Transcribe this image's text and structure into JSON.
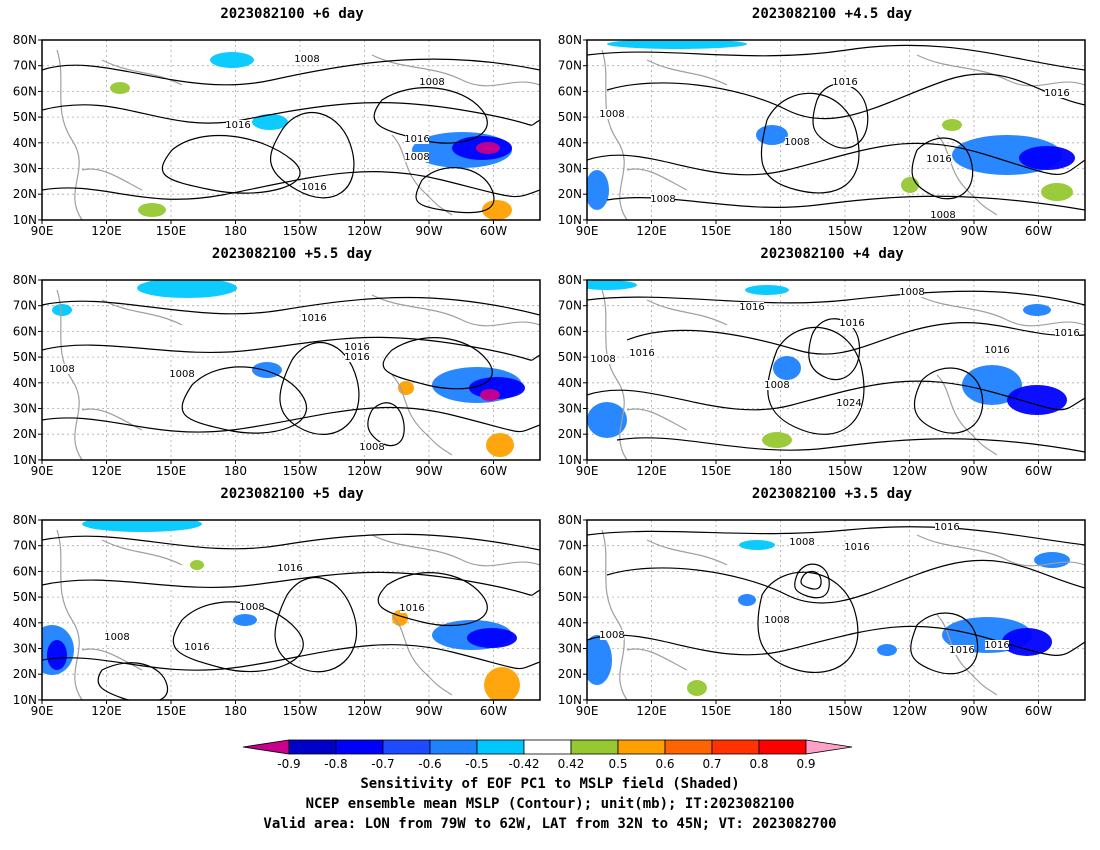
{
  "panels": [
    {
      "title": "2023082100 +6 day"
    },
    {
      "title": "2023082100 +4.5 day"
    },
    {
      "title": "2023082100 +5.5 day"
    },
    {
      "title": "2023082100 +4 day"
    },
    {
      "title": "2023082100 +5 day"
    },
    {
      "title": "2023082100 +3.5 day"
    }
  ],
  "axes": {
    "lat_ticks": [
      "80N",
      "70N",
      "60N",
      "50N",
      "40N",
      "30N",
      "20N",
      "10N"
    ],
    "lon_ticks": [
      "90E",
      "120E",
      "150E",
      "180",
      "150W",
      "120W",
      "90W",
      "60W"
    ]
  },
  "contour_labels": [
    [
      "1008",
      "1008",
      "1016",
      "1016",
      "1008",
      "1016"
    ],
    [
      "1016",
      "1016",
      "1008",
      "1008",
      "1016",
      "1008",
      "1008"
    ],
    [
      "1008",
      "1016",
      "1016",
      "1016",
      "1008",
      "1008"
    ],
    [
      "1016",
      "1008",
      "1016",
      "1016",
      "1016",
      "1008",
      "1024",
      "1016",
      "1008"
    ],
    [
      "1016",
      "1008",
      "1016",
      "1016",
      "1008"
    ],
    [
      "1008",
      "1016",
      "1016",
      "1008",
      "1008",
      "1016",
      "1016"
    ]
  ],
  "colorbar": {
    "levels": [
      "-0.9",
      "-0.8",
      "-0.7",
      "-0.6",
      "-0.5",
      "-0.42",
      "0.42",
      "0.5",
      "0.6",
      "0.7",
      "0.8",
      "0.9"
    ],
    "colors": [
      "#c8008c",
      "#0000c8",
      "#0000ff",
      "#1e4bff",
      "#1e82ff",
      "#00c8ff",
      "#ffffff",
      "#96c832",
      "#ffa000",
      "#ff6400",
      "#ff3200",
      "#ff0000",
      "#ffa0c8"
    ]
  },
  "footer": {
    "line1": "Sensitivity of EOF PC1 to MSLP field (Shaded)",
    "line2": "NCEP ensemble mean MSLP (Contour); unit(mb); IT:2023082100",
    "line3": "Valid area: LON from 79W to 62W, LAT from 32N to 45N; VT: 2023082700"
  }
}
